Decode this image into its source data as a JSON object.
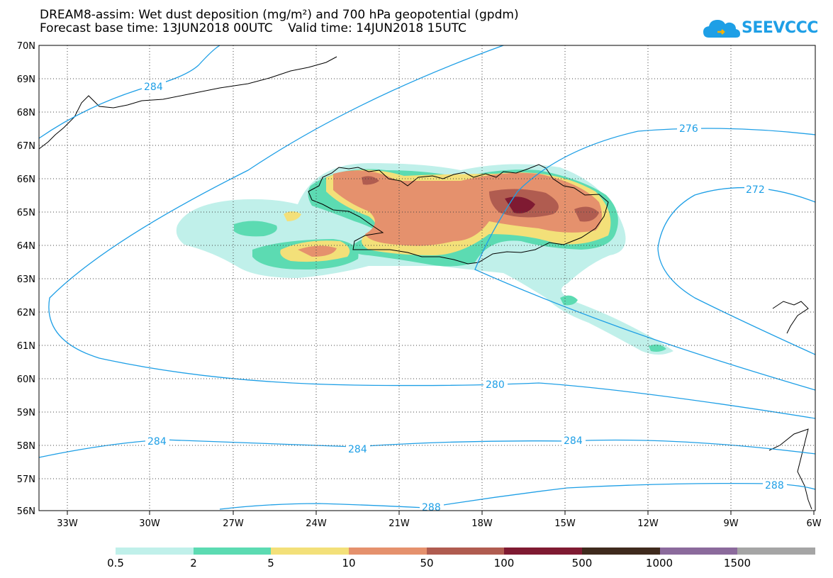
{
  "title_line1": "DREAM8-assim: Wet dust deposition (mg/m²) and 700 hPa geopotential (gpdm)",
  "title_line2": "Forecast base time: 13JUN2018 00UTC    Valid time: 14JUN2018 15UTC",
  "logo_text": "SEEVCCC",
  "map": {
    "lon_range": [
      -34.5,
      -6
    ],
    "lat_range": [
      56,
      70
    ],
    "lat_labels": [
      "70N",
      "69N",
      "68N",
      "67N",
      "66N",
      "65N",
      "64N",
      "63N",
      "62N",
      "61N",
      "60N",
      "59N",
      "58N",
      "57N",
      "56N"
    ],
    "lon_labels": [
      "33W",
      "30W",
      "27W",
      "24W",
      "21W",
      "18W",
      "15W",
      "12W",
      "9W",
      "6W"
    ],
    "contour_labels": [
      "284",
      "276",
      "272",
      "280",
      "284",
      "284",
      "284",
      "288",
      "288"
    ],
    "contour_color": "#1e9fe6"
  },
  "legend": {
    "colors": [
      "#c0f0ea",
      "#5cdbb2",
      "#f3e079",
      "#e5916d",
      "#b05c50",
      "#7f1a32",
      "#3f2a1d",
      "#8b6a9c",
      "#a5a5a5"
    ],
    "labels": [
      "0.5",
      "2",
      "5",
      "10",
      "50",
      "100",
      "500",
      "1000",
      "1500"
    ]
  }
}
